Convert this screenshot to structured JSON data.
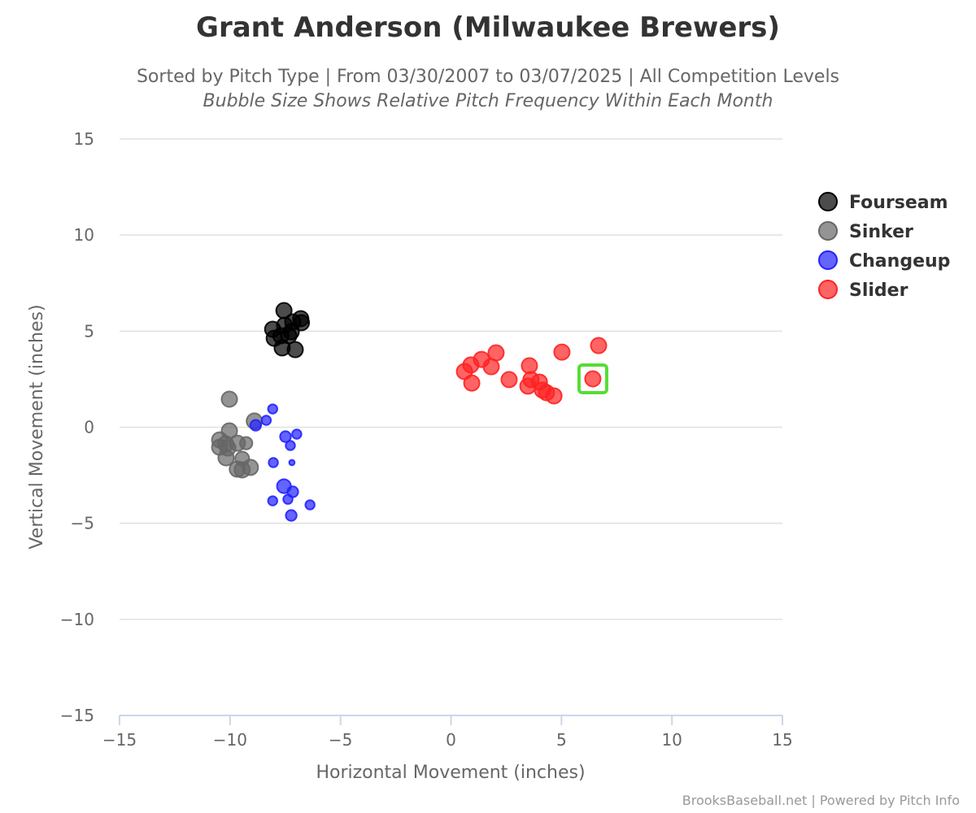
{
  "chart_data": {
    "type": "scatter",
    "title": "Grant Anderson (Milwaukee Brewers)",
    "subtitle": "Sorted by Pitch Type | From 03/30/2007 to 03/07/2025 | All Competition Levels",
    "subtitle2": "Bubble Size Shows Relative Pitch Frequency Within Each Month",
    "xlabel": "Horizontal Movement (inches)",
    "ylabel": "Vertical Movement (inches)",
    "xlim": [
      -15,
      15
    ],
    "ylim": [
      -15,
      15
    ],
    "xticks": [
      -15,
      -10,
      -5,
      0,
      5,
      10,
      15
    ],
    "yticks": [
      -15,
      -10,
      -5,
      0,
      5,
      10,
      15
    ],
    "xtick_labels": [
      "−15",
      "−10",
      "−5",
      "0",
      "5",
      "10",
      "15"
    ],
    "ytick_labels": [
      "−15",
      "−10",
      "−5",
      "0",
      "5",
      "10",
      "15"
    ],
    "grid": "horizontal",
    "legend_position": "right",
    "credits": "BrooksBaseball.net | Powered by Pitch Info",
    "highlight": {
      "series": "Slider",
      "x": 6.42,
      "y": 2.52,
      "color": "#55dd33"
    },
    "series": [
      {
        "name": "Fourseam",
        "color": "#000000",
        "points": [
          [
            -7.56,
            6.07,
            1
          ],
          [
            -8.07,
            5.1,
            1
          ],
          [
            -8.0,
            4.63,
            1
          ],
          [
            -7.64,
            4.13,
            1
          ],
          [
            -7.05,
            4.04,
            1
          ],
          [
            -7.53,
            5.31,
            1
          ],
          [
            -7.23,
            4.97,
            1
          ],
          [
            -7.7,
            4.76,
            1
          ],
          [
            -6.8,
            5.65,
            1
          ],
          [
            -6.77,
            5.44,
            1
          ],
          [
            -7.34,
            4.76,
            1
          ],
          [
            -7.16,
            5.48,
            1
          ]
        ]
      },
      {
        "name": "Sinker",
        "color": "#666666",
        "points": [
          [
            -10.03,
            1.46,
            1
          ],
          [
            -8.9,
            0.32,
            1
          ],
          [
            -10.03,
            -0.19,
            1
          ],
          [
            -10.47,
            -0.66,
            1
          ],
          [
            -10.2,
            -0.87,
            1
          ],
          [
            -10.47,
            -1.04,
            1
          ],
          [
            -10.18,
            -1.59,
            1
          ],
          [
            -9.67,
            -0.83,
            1
          ],
          [
            -9.27,
            -0.83,
            0.8
          ],
          [
            -9.45,
            -1.63,
            0.9
          ],
          [
            -9.67,
            -2.18,
            1
          ],
          [
            -9.45,
            -2.22,
            1
          ],
          [
            -9.08,
            -2.09,
            1
          ],
          [
            -10.1,
            -1.08,
            1
          ]
        ]
      },
      {
        "name": "Changeup",
        "color": "#2222ff",
        "points": [
          [
            -8.07,
            0.95,
            0.6
          ],
          [
            -8.36,
            0.36,
            0.6
          ],
          [
            -8.84,
            0.1,
            0.7
          ],
          [
            -7.49,
            -0.49,
            0.7
          ],
          [
            -6.98,
            -0.36,
            0.6
          ],
          [
            -7.27,
            -0.95,
            0.6
          ],
          [
            -8.04,
            -1.84,
            0.6
          ],
          [
            -7.2,
            -1.84,
            0.35
          ],
          [
            -7.56,
            -3.07,
            0.9
          ],
          [
            -7.16,
            -3.36,
            0.7
          ],
          [
            -7.38,
            -3.75,
            0.6
          ],
          [
            -8.07,
            -3.83,
            0.6
          ],
          [
            -6.38,
            -4.04,
            0.6
          ],
          [
            -7.23,
            -4.59,
            0.7
          ]
        ]
      },
      {
        "name": "Slider",
        "color": "#ff2222",
        "points": [
          [
            0.61,
            2.9,
            1
          ],
          [
            0.9,
            3.24,
            1
          ],
          [
            0.94,
            2.3,
            1
          ],
          [
            1.38,
            3.53,
            1
          ],
          [
            1.82,
            3.15,
            1
          ],
          [
            2.04,
            3.87,
            1
          ],
          [
            2.63,
            2.48,
            1
          ],
          [
            3.55,
            3.2,
            1
          ],
          [
            3.48,
            2.14,
            1
          ],
          [
            3.62,
            2.48,
            1
          ],
          [
            4.0,
            2.35,
            1
          ],
          [
            4.14,
            1.93,
            1
          ],
          [
            4.32,
            1.8,
            1
          ],
          [
            4.66,
            1.63,
            1
          ],
          [
            5.02,
            3.91,
            1
          ],
          [
            6.42,
            2.52,
            1
          ],
          [
            6.68,
            4.25,
            1
          ]
        ]
      }
    ]
  }
}
